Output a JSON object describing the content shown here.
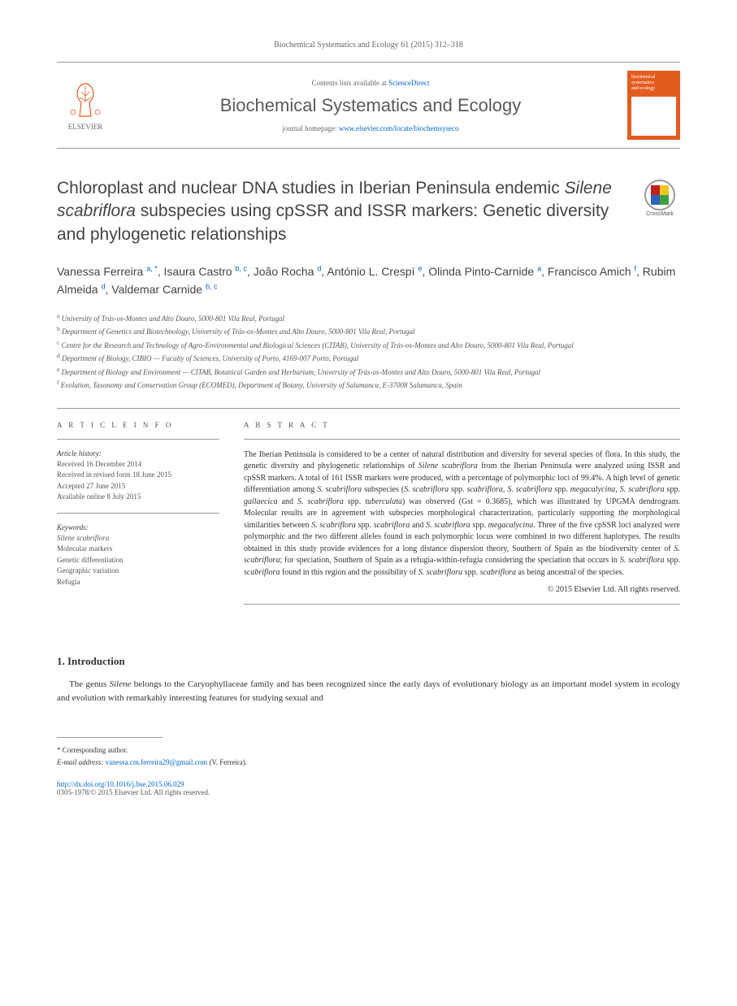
{
  "header": {
    "citation": "Biochemical Systematics and Ecology 61 (2015) 312–318"
  },
  "masthead": {
    "elsevier_label": "ELSEVIER",
    "contents_prefix": "Contents lists available at ",
    "contents_link": "ScienceDirect",
    "journal_name": "Biochemical Systematics and Ecology",
    "homepage_prefix": "journal homepage: ",
    "homepage_url": "www.elsevier.com/locate/biochemsyseco",
    "cover_line1": "biochemical",
    "cover_line2": "systematics",
    "cover_line3": "and ecology"
  },
  "title": {
    "text_html": "Chloroplast and nuclear DNA studies in Iberian Peninsula endemic <em>Silene scabriflora</em> subspecies using cpSSR and ISSR markers: Genetic diversity and phylogenetic relationships",
    "crossmark_label": "CrossMark"
  },
  "authors_html": "Vanessa Ferreira <sup>a, *</sup>, Isaura Castro <sup>b, c</sup>, João Rocha <sup>d</sup>, António L. Crespí <sup>e</sup>, Olinda Pinto-Carnide <sup>a</sup>, Francisco Amich <sup>f</sup>, Rubim Almeida <sup>d</sup>, Valdemar Carnide <sup>b, c</sup>",
  "affiliations": [
    {
      "sup": "a",
      "text": "University of Trás-os-Montes and Alto Douro, 5000-801 Vila Real, Portugal"
    },
    {
      "sup": "b",
      "text": "Department of Genetics and Biotechnology, University of Trás-os-Montes and Alto Douro, 5000-801 Vila Real, Portugal"
    },
    {
      "sup": "c",
      "text": "Centre for the Research and Technology of Agro-Environmental and Biological Sciences (CITAB), University of Trás-os-Montes and Alto Douro, 5000-801 Vila Real, Portugal"
    },
    {
      "sup": "d",
      "text": "Department of Biology, CIBIO — Faculty of Sciences, University of Porto, 4169-007 Porto, Portugal"
    },
    {
      "sup": "e",
      "text": "Department of Biology and Environment — CITAB, Botanical Garden and Herbarium, University of Trás-os-Montes and Alto Douro, 5000-801 Vila Real, Portugal"
    },
    {
      "sup": "f",
      "text": "Evolution, Taxonomy and Conservation Group (ECOMED), Department of Botany, University of Salamanca, E-37008 Salamanca, Spain"
    }
  ],
  "article_info": {
    "heading": "A R T I C L E   I N F O",
    "history_heading": "Article history:",
    "received": "Received 16 December 2014",
    "revised": "Received in revised form 18 June 2015",
    "accepted": "Accepted 27 June 2015",
    "online": "Available online 8 July 2015",
    "keywords_heading": "Keywords:",
    "keywords": [
      "Silene scabriflora",
      "Molecular markers",
      "Genetic differentiation",
      "Geographic variation",
      "Refugia"
    ]
  },
  "abstract": {
    "heading": "A B S T R A C T",
    "text_html": "The Iberian Peninsula is considered to be a center of natural distribution and diversity for several species of flora. In this study, the genetic diversity and phylogenetic relationships of <em>Silene scabriflora</em> from the Iberian Peninsula were analyzed using ISSR and cpSSR markers. A total of 161 ISSR markers were produced, with a percentage of polymorphic loci of 99.4%. A high level of genetic differentiation among <em>S. scabriflora</em> subspecies (<em>S. scabriflora</em> spp. <em>scabriflora</em>, <em>S. scabriflora</em> spp. <em>megacalycina</em>, <em>S. scabriflora</em> spp. <em>gallaecica</em> and <em>S. scabriflora</em> spp. <em>tuberculata</em>) was observed (Gst = 0.3685), which was illustrated by UPGMA dendrogram. Molecular results are in agreement with subspecies morphological characterization, particularly supporting the morphological similarities between <em>S. scabriflora</em> spp. <em>scabriflora</em> and <em>S. scabriflora</em> spp. <em>megacalycina</em>. Three of the five cpSSR loci analyzed were polymorphic and the two different alleles found in each polymorphic locus were combined in two different haplotypes. The results obtained in this study provide evidences for a long distance dispersion theory, Southern of Spain as the biodiversity center of <em>S. scabriflora</em>; for speciation, Southern of Spain as a refugia-within-refugia considering the speciation that occurs in <em>S. scabriflora</em> spp. <em>scabriflora</em> found in this region and the possibility of <em>S. scabriflora</em> spp. <em>scabriflora</em> as being ancestral of the species.",
    "copyright": "© 2015 Elsevier Ltd. All rights reserved."
  },
  "introduction": {
    "heading": "1. Introduction",
    "text_html": "The genus <em>Silene</em> belongs to the Caryophyllaceae family and has been recognized since the early days of evolutionary biology as an important model system in ecology and evolution with remarkably interesting features for studying sexual and"
  },
  "footer": {
    "corresponding_label": "* Corresponding author.",
    "email_label": "E-mail address:",
    "email": "vanessa.cm.ferreira29@gmail.com",
    "email_suffix": "(V. Ferreira).",
    "doi": "http://dx.doi.org/10.1016/j.bse.2015.06.029",
    "issn_copyright": "0305-1978/© 2015 Elsevier Ltd. All rights reserved."
  },
  "colors": {
    "link": "#0066cc",
    "orange": "#e35c1f",
    "text": "#333333",
    "muted": "#666666"
  }
}
